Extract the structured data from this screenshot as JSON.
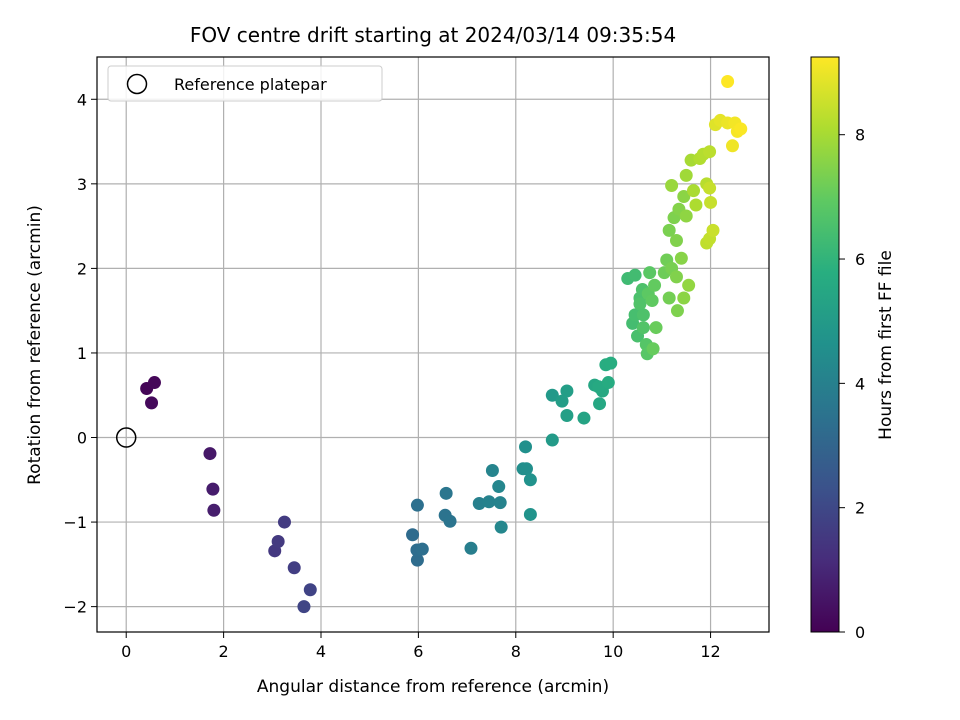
{
  "chart_data": {
    "type": "scatter",
    "title": "FOV centre drift starting at 2024/03/14 09:35:54",
    "xlabel": "Angular distance from reference (arcmin)",
    "ylabel": "Rotation from reference (arcmin)",
    "xlim": [
      -0.6,
      13.2
    ],
    "ylim": [
      -2.3,
      4.5
    ],
    "xticks": [
      0,
      2,
      4,
      6,
      8,
      10,
      12
    ],
    "yticks": [
      -2,
      -1,
      0,
      1,
      2,
      3,
      4
    ],
    "x_tick_labels": [
      "0",
      "2",
      "4",
      "6",
      "8",
      "10",
      "12"
    ],
    "y_tick_labels": [
      "−2",
      "−1",
      "0",
      "1",
      "2",
      "3",
      "4"
    ],
    "grid": true,
    "legend": {
      "position": "upper-left",
      "entries": [
        "Reference platepar"
      ]
    },
    "reference_point": {
      "x": 0,
      "y": 0,
      "label": "Reference platepar"
    },
    "colorbar": {
      "label": "Hours from first FF file",
      "colormap": "viridis",
      "range": [
        0,
        9.25
      ],
      "ticks": [
        0,
        2,
        4,
        6,
        8
      ],
      "tick_labels": [
        "0",
        "2",
        "4",
        "6",
        "8"
      ]
    },
    "series": [
      {
        "points": [
          {
            "x": 0.42,
            "y": 0.58,
            "c": 0.1
          },
          {
            "x": 0.58,
            "y": 0.65,
            "c": 0.15
          },
          {
            "x": 0.52,
            "y": 0.41,
            "c": 0.2
          },
          {
            "x": 1.72,
            "y": -0.19,
            "c": 0.6
          },
          {
            "x": 1.78,
            "y": -0.61,
            "c": 0.7
          },
          {
            "x": 1.8,
            "y": -0.86,
            "c": 0.75
          },
          {
            "x": 3.05,
            "y": -1.34,
            "c": 1.5
          },
          {
            "x": 3.12,
            "y": -1.23,
            "c": 1.55
          },
          {
            "x": 3.25,
            "y": -1.0,
            "c": 1.6
          },
          {
            "x": 3.45,
            "y": -1.54,
            "c": 1.7
          },
          {
            "x": 3.78,
            "y": -1.8,
            "c": 1.85
          },
          {
            "x": 3.65,
            "y": -2.0,
            "c": 1.9
          },
          {
            "x": 5.88,
            "y": -1.15,
            "c": 3.2
          },
          {
            "x": 5.98,
            "y": -1.45,
            "c": 3.25
          },
          {
            "x": 5.97,
            "y": -1.33,
            "c": 3.3
          },
          {
            "x": 6.08,
            "y": -1.32,
            "c": 3.35
          },
          {
            "x": 5.98,
            "y": -0.8,
            "c": 3.4
          },
          {
            "x": 6.55,
            "y": -0.92,
            "c": 3.5
          },
          {
            "x": 6.65,
            "y": -0.99,
            "c": 3.55
          },
          {
            "x": 6.57,
            "y": -0.66,
            "c": 3.6
          },
          {
            "x": 7.08,
            "y": -1.31,
            "c": 3.9
          },
          {
            "x": 7.25,
            "y": -0.78,
            "c": 4.0
          },
          {
            "x": 7.45,
            "y": -0.76,
            "c": 4.05
          },
          {
            "x": 7.68,
            "y": -0.77,
            "c": 4.1
          },
          {
            "x": 7.52,
            "y": -0.39,
            "c": 4.15
          },
          {
            "x": 7.65,
            "y": -0.58,
            "c": 4.2
          },
          {
            "x": 7.7,
            "y": -1.06,
            "c": 4.25
          },
          {
            "x": 8.15,
            "y": -0.37,
            "c": 4.5
          },
          {
            "x": 8.22,
            "y": -0.37,
            "c": 4.55
          },
          {
            "x": 8.2,
            "y": -0.11,
            "c": 4.6
          },
          {
            "x": 8.3,
            "y": -0.5,
            "c": 4.65
          },
          {
            "x": 8.3,
            "y": -0.91,
            "c": 4.7
          },
          {
            "x": 8.75,
            "y": 0.5,
            "c": 4.95
          },
          {
            "x": 8.75,
            "y": -0.03,
            "c": 5.0
          },
          {
            "x": 8.95,
            "y": 0.43,
            "c": 5.1
          },
          {
            "x": 9.05,
            "y": 0.55,
            "c": 5.15
          },
          {
            "x": 9.05,
            "y": 0.26,
            "c": 5.2
          },
          {
            "x": 9.4,
            "y": 0.23,
            "c": 5.35
          },
          {
            "x": 9.62,
            "y": 0.62,
            "c": 5.45
          },
          {
            "x": 9.72,
            "y": 0.4,
            "c": 5.5
          },
          {
            "x": 9.78,
            "y": 0.55,
            "c": 5.55
          },
          {
            "x": 9.7,
            "y": 0.6,
            "c": 5.6
          },
          {
            "x": 9.9,
            "y": 0.65,
            "c": 5.65
          },
          {
            "x": 9.85,
            "y": 0.86,
            "c": 5.7
          },
          {
            "x": 9.95,
            "y": 0.88,
            "c": 5.75
          },
          {
            "x": 10.3,
            "y": 1.88,
            "c": 6.3
          },
          {
            "x": 10.45,
            "y": 1.92,
            "c": 6.35
          },
          {
            "x": 10.4,
            "y": 1.35,
            "c": 6.4
          },
          {
            "x": 10.45,
            "y": 1.45,
            "c": 6.45
          },
          {
            "x": 10.5,
            "y": 1.2,
            "c": 6.5
          },
          {
            "x": 10.55,
            "y": 1.65,
            "c": 6.55
          },
          {
            "x": 10.6,
            "y": 1.75,
            "c": 6.6
          },
          {
            "x": 10.55,
            "y": 1.58,
            "c": 6.65
          },
          {
            "x": 10.62,
            "y": 1.3,
            "c": 6.7
          },
          {
            "x": 10.68,
            "y": 1.1,
            "c": 6.75
          },
          {
            "x": 10.7,
            "y": 0.99,
            "c": 6.8
          },
          {
            "x": 10.75,
            "y": 1.95,
            "c": 6.85
          },
          {
            "x": 10.72,
            "y": 1.7,
            "c": 6.9
          },
          {
            "x": 10.8,
            "y": 1.62,
            "c": 6.95
          },
          {
            "x": 10.85,
            "y": 1.8,
            "c": 7.0
          },
          {
            "x": 10.82,
            "y": 1.05,
            "c": 7.05
          },
          {
            "x": 10.88,
            "y": 1.3,
            "c": 7.1
          },
          {
            "x": 10.62,
            "y": 1.45,
            "c": 6.6
          },
          {
            "x": 11.05,
            "y": 1.95,
            "c": 7.15
          },
          {
            "x": 11.1,
            "y": 2.1,
            "c": 7.2
          },
          {
            "x": 11.15,
            "y": 1.65,
            "c": 7.25
          },
          {
            "x": 11.2,
            "y": 2.0,
            "c": 7.3
          },
          {
            "x": 11.15,
            "y": 2.45,
            "c": 7.35
          },
          {
            "x": 11.25,
            "y": 2.6,
            "c": 7.4
          },
          {
            "x": 11.3,
            "y": 2.33,
            "c": 7.45
          },
          {
            "x": 11.35,
            "y": 2.7,
            "c": 7.5
          },
          {
            "x": 11.3,
            "y": 1.9,
            "c": 7.45
          },
          {
            "x": 11.32,
            "y": 1.5,
            "c": 7.4
          },
          {
            "x": 11.4,
            "y": 2.12,
            "c": 7.55
          },
          {
            "x": 11.45,
            "y": 2.85,
            "c": 7.6
          },
          {
            "x": 11.45,
            "y": 1.65,
            "c": 7.6
          },
          {
            "x": 11.5,
            "y": 2.62,
            "c": 7.65
          },
          {
            "x": 11.55,
            "y": 1.8,
            "c": 7.7
          },
          {
            "x": 11.2,
            "y": 2.98,
            "c": 7.8
          },
          {
            "x": 11.5,
            "y": 3.1,
            "c": 7.9
          },
          {
            "x": 11.6,
            "y": 3.28,
            "c": 8.0
          },
          {
            "x": 11.65,
            "y": 2.92,
            "c": 8.05
          },
          {
            "x": 11.7,
            "y": 2.75,
            "c": 8.1
          },
          {
            "x": 11.78,
            "y": 3.3,
            "c": 8.15
          },
          {
            "x": 11.85,
            "y": 3.35,
            "c": 8.2
          },
          {
            "x": 11.92,
            "y": 3.0,
            "c": 8.25
          },
          {
            "x": 11.98,
            "y": 3.38,
            "c": 8.3
          },
          {
            "x": 11.92,
            "y": 2.3,
            "c": 8.35
          },
          {
            "x": 11.98,
            "y": 2.35,
            "c": 8.4
          },
          {
            "x": 12.0,
            "y": 2.78,
            "c": 8.45
          },
          {
            "x": 12.05,
            "y": 2.45,
            "c": 8.5
          },
          {
            "x": 11.98,
            "y": 2.95,
            "c": 8.45
          },
          {
            "x": 12.1,
            "y": 3.7,
            "c": 8.8
          },
          {
            "x": 12.2,
            "y": 3.75,
            "c": 8.9
          },
          {
            "x": 12.35,
            "y": 3.72,
            "c": 9.0
          },
          {
            "x": 12.45,
            "y": 3.45,
            "c": 9.05
          },
          {
            "x": 12.5,
            "y": 3.72,
            "c": 9.1
          },
          {
            "x": 12.55,
            "y": 3.62,
            "c": 9.15
          },
          {
            "x": 12.62,
            "y": 3.65,
            "c": 9.2
          },
          {
            "x": 12.35,
            "y": 4.21,
            "c": 9.25
          }
        ]
      }
    ]
  }
}
